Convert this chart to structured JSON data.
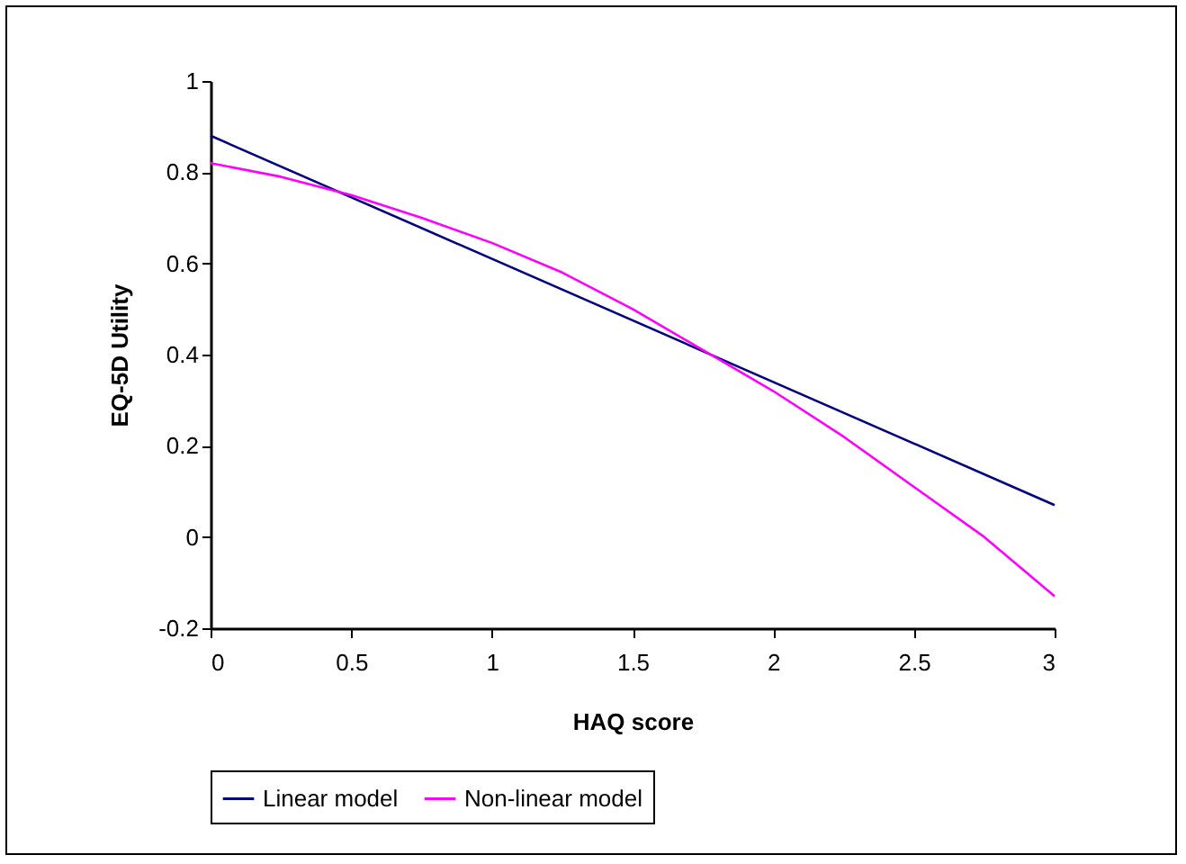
{
  "chart_data": {
    "type": "line",
    "xlabel": "HAQ score",
    "ylabel": "EQ-5D Utility",
    "xlim": [
      0,
      3
    ],
    "xticks": [
      0,
      0.5,
      1,
      1.5,
      2,
      2.5,
      3
    ],
    "ylim": [
      -0.2,
      1
    ],
    "yticks": [
      -0.2,
      0,
      0.2,
      0.4,
      0.6,
      0.8,
      1
    ],
    "grid": false,
    "legend": "bottom",
    "line_style": "solid",
    "marker": "none",
    "series": [
      {
        "name": "Linear model",
        "color": "#000080",
        "x": [
          0,
          3
        ],
        "values": [
          0.88,
          0.07
        ]
      },
      {
        "name": "Non-linear model",
        "color": "#ff00ff",
        "x": [
          0,
          0.25,
          0.5,
          0.75,
          1,
          1.25,
          1.5,
          1.75,
          2,
          2.25,
          2.5,
          2.75,
          3
        ],
        "values": [
          0.82,
          0.79,
          0.75,
          0.7,
          0.645,
          0.58,
          0.5,
          0.41,
          0.32,
          0.22,
          0.11,
          0,
          -0.13
        ]
      }
    ]
  }
}
